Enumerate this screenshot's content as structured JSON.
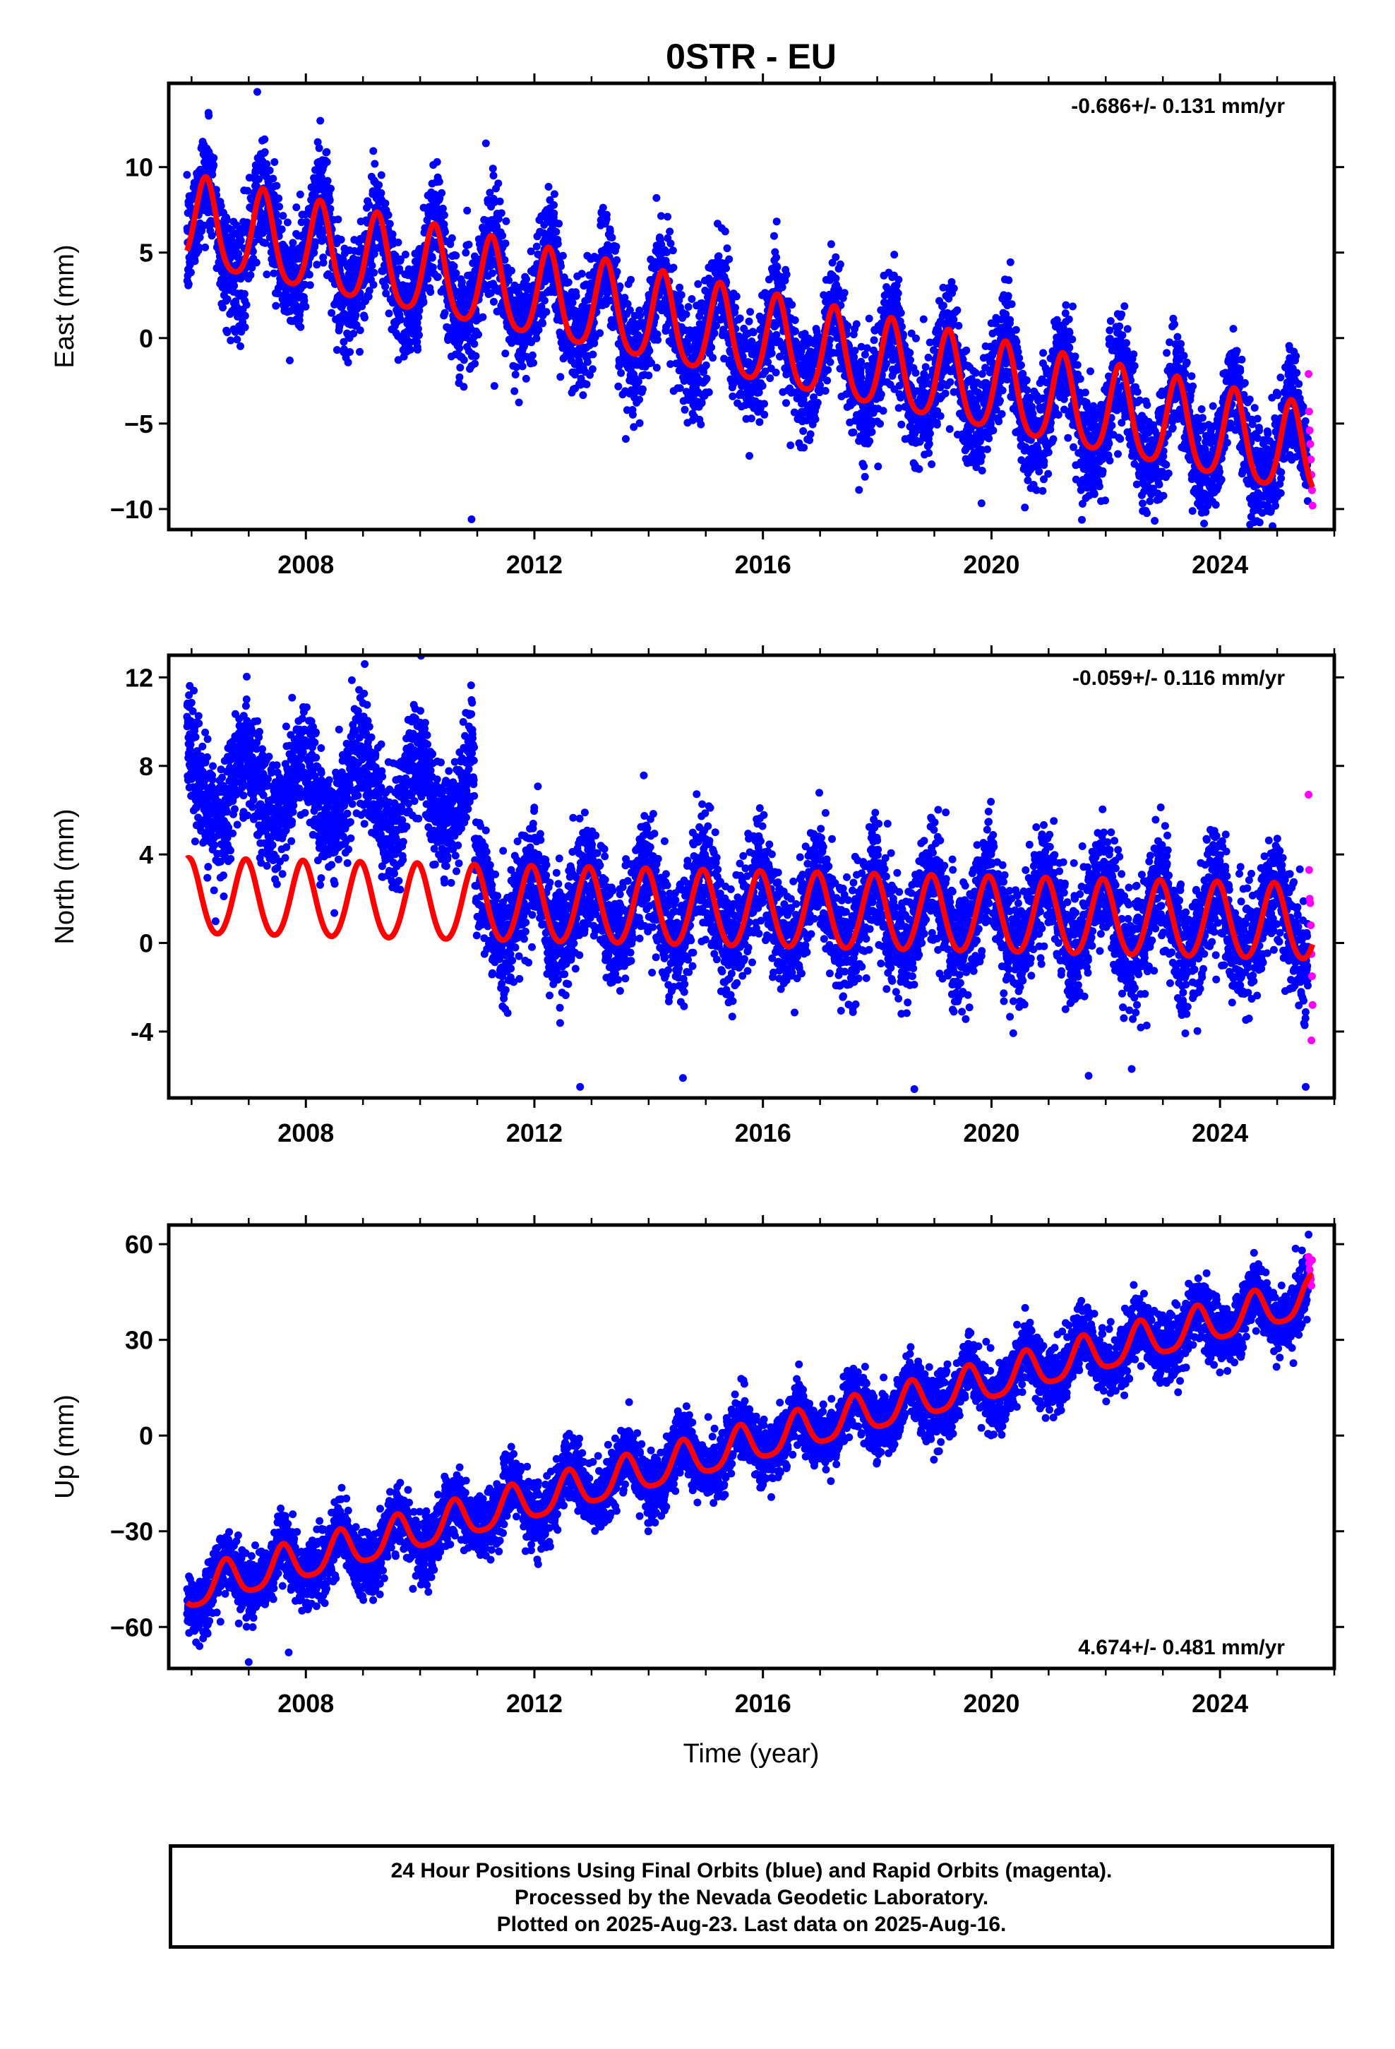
{
  "title": "0STR - EU",
  "colors": {
    "final_orbits": "#0000ff",
    "rapid_orbits": "#ff00ff",
    "model": "#ff0000",
    "frame": "#000000"
  },
  "xlabel": "Time (year)",
  "caption": {
    "line1": "24 Hour Positions Using Final Orbits (blue) and Rapid Orbits (magenta).",
    "line2": "Processed by the Nevada Geodetic Laboratory.",
    "line3": "Plotted on 2025-Aug-23. Last data on 2025-Aug-16."
  },
  "chart_data": [
    {
      "type": "scatter",
      "component": "east",
      "ylabel": "East (mm)",
      "rate_label": "-0.686+/- 0.131 mm/yr",
      "rate_position": "top-right",
      "xlim": [
        2005.6,
        2026.0
      ],
      "ylim": [
        -11.2,
        14.9
      ],
      "xticks": [
        2008,
        2012,
        2016,
        2020,
        2024
      ],
      "yticks": [
        10,
        5,
        0,
        -5,
        -10
      ],
      "ytick_labels": [
        "10",
        "5",
        "0",
        "−5",
        "−10"
      ],
      "x_start": 2005.92,
      "x_end": 2025.62,
      "model": {
        "start_value": 6.6,
        "start_year": 2005.92,
        "slope_mm_per_yr": -0.686,
        "annual_amplitude": 2.6,
        "annual_peak_phase": 0.25,
        "semiannual_amplitude": 0.45,
        "offsets": []
      },
      "scatter_noise": 1.6,
      "rapid_points": [
        {
          "x": 2025.55,
          "y": -2.1
        },
        {
          "x": 2025.56,
          "y": -4.3
        },
        {
          "x": 2025.57,
          "y": -5.4
        },
        {
          "x": 2025.58,
          "y": -6.2
        },
        {
          "x": 2025.59,
          "y": -7.1
        },
        {
          "x": 2025.6,
          "y": -8.0
        },
        {
          "x": 2025.61,
          "y": -8.9
        },
        {
          "x": 2025.62,
          "y": -9.8
        }
      ],
      "outliers": [
        {
          "x": 2010.9,
          "y": -10.6
        },
        {
          "x": 2007.15,
          "y": 14.4
        },
        {
          "x": 2013.6,
          "y": -5.9
        },
        {
          "x": 2011.3,
          "y": -2.8
        },
        {
          "x": 2022.7,
          "y": -10.1
        }
      ]
    },
    {
      "type": "scatter",
      "component": "north",
      "ylabel": "North (mm)",
      "rate_label": "-0.059+/- 0.116 mm/yr",
      "rate_position": "top-right",
      "xlim": [
        2005.6,
        2026.0
      ],
      "ylim": [
        -7.0,
        13.0
      ],
      "xticks": [
        2008,
        2012,
        2016,
        2020,
        2024
      ],
      "yticks": [
        12,
        8,
        4,
        0,
        -4
      ],
      "ytick_labels": [
        "12",
        "8",
        "4",
        "0",
        "-4"
      ],
      "x_start": 2005.92,
      "x_end": 2025.62,
      "model": {
        "start_value": 2.0,
        "start_year": 2005.92,
        "slope_mm_per_yr": -0.059,
        "annual_amplitude": 1.7,
        "annual_peak_phase": 0.95,
        "semiannual_amplitude": 0.15,
        "offsets": [
          {
            "year": 2010.9,
            "amount": 0.0
          }
        ]
      },
      "data_offsets": [
        {
          "before": 2010.95,
          "shift": 5.0
        }
      ],
      "scatter_noise": 1.3,
      "rapid_points": [
        {
          "x": 2025.55,
          "y": 6.7
        },
        {
          "x": 2025.56,
          "y": 3.3
        },
        {
          "x": 2025.57,
          "y": 2.0
        },
        {
          "x": 2025.58,
          "y": 1.8
        },
        {
          "x": 2025.59,
          "y": 0.8
        },
        {
          "x": 2025.6,
          "y": -0.5
        },
        {
          "x": 2025.61,
          "y": -1.5
        },
        {
          "x": 2025.62,
          "y": -2.8
        },
        {
          "x": 2025.6,
          "y": -4.4
        }
      ],
      "outliers": [
        {
          "x": 2009.03,
          "y": 12.6
        },
        {
          "x": 2019.2,
          "y": 5.9
        },
        {
          "x": 2012.8,
          "y": -6.5
        },
        {
          "x": 2018.65,
          "y": -6.6
        },
        {
          "x": 2014.6,
          "y": -6.1
        },
        {
          "x": 2021.7,
          "y": -6.0
        },
        {
          "x": 2025.5,
          "y": -6.5
        },
        {
          "x": 2024.1,
          "y": 4.9
        }
      ]
    },
    {
      "type": "scatter",
      "component": "up",
      "ylabel": "Up (mm)",
      "rate_label": "4.674+/- 0.481 mm/yr",
      "rate_position": "bottom-right",
      "xlim": [
        2005.6,
        2026.0
      ],
      "ylim": [
        -73,
        66
      ],
      "xticks": [
        2008,
        2012,
        2016,
        2020,
        2024
      ],
      "yticks": [
        60,
        30,
        0,
        -30,
        -60
      ],
      "ytick_labels": [
        "60",
        "30",
        "0",
        "−30",
        "−60"
      ],
      "x_start": 2005.92,
      "x_end": 2025.62,
      "model": {
        "start_value": -49.0,
        "start_year": 2005.92,
        "slope_mm_per_yr": 4.674,
        "annual_amplitude": 6.0,
        "annual_peak_phase": 0.6,
        "semiannual_amplitude": 1.2,
        "offsets": []
      },
      "scatter_noise": 5.0,
      "rapid_points": [
        {
          "x": 2025.55,
          "y": 56
        },
        {
          "x": 2025.56,
          "y": 54
        },
        {
          "x": 2025.57,
          "y": 52
        },
        {
          "x": 2025.58,
          "y": 50
        },
        {
          "x": 2025.59,
          "y": 49
        },
        {
          "x": 2025.6,
          "y": 47
        },
        {
          "x": 2025.61,
          "y": 55
        }
      ],
      "outliers": [
        {
          "x": 2025.55,
          "y": 63
        },
        {
          "x": 2007.0,
          "y": -71
        },
        {
          "x": 2007.7,
          "y": -68
        }
      ]
    }
  ]
}
